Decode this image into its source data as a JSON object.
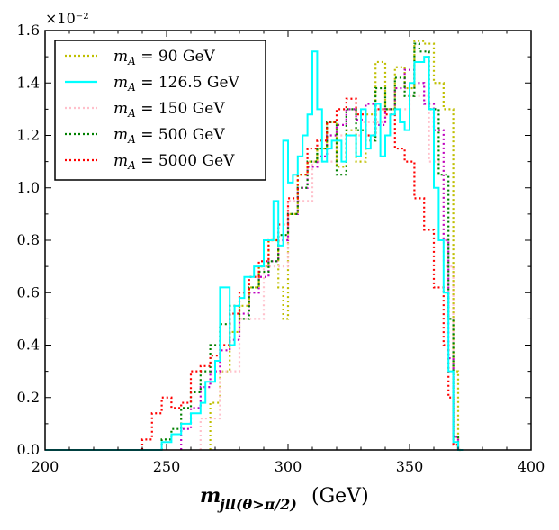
{
  "chart_data": {
    "type": "histogram",
    "title": "",
    "xlabel": "m_{jll(θ>π/2)} (GeV)",
    "xlabel_main": "m",
    "xlabel_sub": "jll(θ>π/2)",
    "xlabel_unit": "(GeV)",
    "ylabel": "",
    "y_multiplier": "×10⁻²",
    "xlim": [
      200,
      400
    ],
    "ylim": [
      0.0,
      1.6
    ],
    "xticks": [
      200,
      250,
      300,
      350,
      400
    ],
    "yticks": [
      0.0,
      0.2,
      0.4,
      0.6,
      0.8,
      1.0,
      1.2,
      1.4,
      1.6
    ],
    "bin_width": 2,
    "legend_position": "top-left",
    "series": [
      {
        "name": "m_A = 90  GeV",
        "color": "#bfbf00",
        "style": "dotted",
        "bins": [
          [
            268,
            0.18
          ],
          [
            272,
            0.3
          ],
          [
            276,
            0.45
          ],
          [
            280,
            0.55
          ],
          [
            284,
            0.62
          ],
          [
            288,
            0.7
          ],
          [
            292,
            0.8
          ],
          [
            296,
            0.62
          ],
          [
            298,
            0.5
          ],
          [
            300,
            0.9
          ],
          [
            304,
            1.05
          ],
          [
            308,
            1.1
          ],
          [
            312,
            1.15
          ],
          [
            316,
            1.25
          ],
          [
            320,
            1.08
          ],
          [
            324,
            1.22
          ],
          [
            328,
            1.1
          ],
          [
            332,
            1.28
          ],
          [
            336,
            1.48
          ],
          [
            340,
            1.3
          ],
          [
            344,
            1.46
          ],
          [
            348,
            1.38
          ],
          [
            352,
            1.56
          ],
          [
            356,
            1.55
          ],
          [
            360,
            1.4
          ],
          [
            364,
            1.3
          ],
          [
            368,
            0.3
          ],
          [
            370,
            0.0
          ]
        ]
      },
      {
        "name": "m_A = 126.5  GeV",
        "color": "#00ffff",
        "style": "solid",
        "bins": [
          [
            200,
            0.0
          ],
          [
            248,
            0.03
          ],
          [
            252,
            0.06
          ],
          [
            256,
            0.1
          ],
          [
            260,
            0.14
          ],
          [
            264,
            0.18
          ],
          [
            266,
            0.26
          ],
          [
            270,
            0.34
          ],
          [
            272,
            0.62
          ],
          [
            276,
            0.4
          ],
          [
            278,
            0.55
          ],
          [
            280,
            0.58
          ],
          [
            282,
            0.66
          ],
          [
            286,
            0.7
          ],
          [
            290,
            0.8
          ],
          [
            294,
            0.95
          ],
          [
            296,
            0.78
          ],
          [
            298,
            1.18
          ],
          [
            300,
            1.02
          ],
          [
            302,
            1.05
          ],
          [
            304,
            1.12
          ],
          [
            306,
            1.2
          ],
          [
            308,
            1.28
          ],
          [
            310,
            1.52
          ],
          [
            312,
            1.3
          ],
          [
            314,
            1.1
          ],
          [
            316,
            1.15
          ],
          [
            318,
            1.18
          ],
          [
            322,
            1.1
          ],
          [
            324,
            1.2
          ],
          [
            328,
            1.12
          ],
          [
            330,
            1.3
          ],
          [
            332,
            1.15
          ],
          [
            334,
            1.2
          ],
          [
            336,
            1.32
          ],
          [
            338,
            1.12
          ],
          [
            340,
            1.2
          ],
          [
            342,
            1.28
          ],
          [
            344,
            1.3
          ],
          [
            346,
            1.25
          ],
          [
            348,
            1.22
          ],
          [
            350,
            1.4
          ],
          [
            352,
            1.48
          ],
          [
            356,
            1.5
          ],
          [
            358,
            1.3
          ],
          [
            360,
            1.0
          ],
          [
            362,
            0.8
          ],
          [
            364,
            0.6
          ],
          [
            366,
            0.3
          ],
          [
            368,
            0.03
          ],
          [
            370,
            0.0
          ]
        ]
      },
      {
        "name": "m_A = 150  GeV",
        "color": "#ffc0cb",
        "style": "dotted",
        "bins": [
          [
            264,
            0.12
          ],
          [
            272,
            0.3
          ],
          [
            280,
            0.5
          ],
          [
            290,
            0.7
          ],
          [
            300,
            0.95
          ],
          [
            310,
            1.1
          ],
          [
            320,
            1.2
          ],
          [
            330,
            1.25
          ],
          [
            340,
            1.3
          ],
          [
            350,
            1.35
          ],
          [
            358,
            1.1
          ],
          [
            364,
            0.7
          ],
          [
            368,
            0.05
          ]
        ]
      },
      {
        "name": "m_A = 500  GeV",
        "color": "#008000",
        "style": "dotted",
        "bins": [
          [
            248,
            0.04
          ],
          [
            252,
            0.08
          ],
          [
            256,
            0.16
          ],
          [
            260,
            0.22
          ],
          [
            264,
            0.3
          ],
          [
            268,
            0.4
          ],
          [
            272,
            0.48
          ],
          [
            276,
            0.55
          ],
          [
            280,
            0.5
          ],
          [
            284,
            0.62
          ],
          [
            288,
            0.68
          ],
          [
            292,
            0.72
          ],
          [
            296,
            0.82
          ],
          [
            300,
            0.9
          ],
          [
            304,
            1.0
          ],
          [
            308,
            1.1
          ],
          [
            312,
            1.15
          ],
          [
            316,
            1.25
          ],
          [
            320,
            1.05
          ],
          [
            324,
            1.3
          ],
          [
            328,
            1.22
          ],
          [
            332,
            1.18
          ],
          [
            336,
            1.38
          ],
          [
            340,
            1.3
          ],
          [
            344,
            1.42
          ],
          [
            348,
            1.35
          ],
          [
            352,
            1.55
          ],
          [
            354,
            1.52
          ],
          [
            358,
            1.3
          ],
          [
            362,
            1.05
          ],
          [
            366,
            0.5
          ],
          [
            368,
            0.05
          ]
        ]
      },
      {
        "name": "m_A = 5000  GeV",
        "color": "#ff0000",
        "style": "dotted",
        "bins": [
          [
            240,
            0.04
          ],
          [
            244,
            0.14
          ],
          [
            248,
            0.2
          ],
          [
            252,
            0.16
          ],
          [
            256,
            0.18
          ],
          [
            260,
            0.3
          ],
          [
            264,
            0.32
          ],
          [
            268,
            0.36
          ],
          [
            272,
            0.4
          ],
          [
            276,
            0.52
          ],
          [
            280,
            0.6
          ],
          [
            284,
            0.66
          ],
          [
            288,
            0.72
          ],
          [
            292,
            0.8
          ],
          [
            296,
            0.86
          ],
          [
            300,
            0.96
          ],
          [
            304,
            1.05
          ],
          [
            308,
            1.15
          ],
          [
            312,
            1.18
          ],
          [
            316,
            1.25
          ],
          [
            320,
            1.3
          ],
          [
            324,
            1.34
          ],
          [
            328,
            1.28
          ],
          [
            332,
            1.2
          ],
          [
            336,
            1.3
          ],
          [
            340,
            1.28
          ],
          [
            344,
            1.15
          ],
          [
            348,
            1.1
          ],
          [
            352,
            0.96
          ],
          [
            356,
            0.84
          ],
          [
            360,
            0.62
          ],
          [
            364,
            0.4
          ],
          [
            366,
            0.2
          ],
          [
            368,
            0.02
          ]
        ]
      },
      {
        "name": "m_A = 126.5  GeV (magenta, unlisted)",
        "color": "#bf00bf",
        "style": "dotted",
        "legend": false,
        "bins": [
          [
            256,
            0.08
          ],
          [
            260,
            0.16
          ],
          [
            264,
            0.24
          ],
          [
            268,
            0.3
          ],
          [
            272,
            0.38
          ],
          [
            276,
            0.42
          ],
          [
            280,
            0.52
          ],
          [
            284,
            0.6
          ],
          [
            288,
            0.66
          ],
          [
            292,
            0.72
          ],
          [
            296,
            0.8
          ],
          [
            300,
            0.9
          ],
          [
            304,
            1.0
          ],
          [
            308,
            1.08
          ],
          [
            312,
            1.12
          ],
          [
            316,
            1.2
          ],
          [
            320,
            1.24
          ],
          [
            324,
            1.3
          ],
          [
            328,
            1.26
          ],
          [
            332,
            1.32
          ],
          [
            336,
            1.24
          ],
          [
            340,
            1.3
          ],
          [
            344,
            1.38
          ],
          [
            348,
            1.45
          ],
          [
            352,
            1.4
          ],
          [
            356,
            1.32
          ],
          [
            360,
            1.22
          ],
          [
            364,
            0.8
          ],
          [
            366,
            0.35
          ],
          [
            368,
            0.05
          ]
        ]
      }
    ]
  },
  "legend": [
    {
      "label_math": "m",
      "label_sub": "A",
      "label_rest": " = 90  GeV",
      "color": "#bfbf00",
      "style": "dotted"
    },
    {
      "label_math": "m",
      "label_sub": "A",
      "label_rest": " = 126.5  GeV",
      "color": "#00ffff",
      "style": "solid"
    },
    {
      "label_math": "m",
      "label_sub": "A",
      "label_rest": " = 150  GeV",
      "color": "#ffc0cb",
      "style": "dotted"
    },
    {
      "label_math": "m",
      "label_sub": "A",
      "label_rest": " = 500  GeV",
      "color": "#008000",
      "style": "dotted"
    },
    {
      "label_math": "m",
      "label_sub": "A",
      "label_rest": " = 5000  GeV",
      "color": "#ff0000",
      "style": "dotted"
    }
  ]
}
